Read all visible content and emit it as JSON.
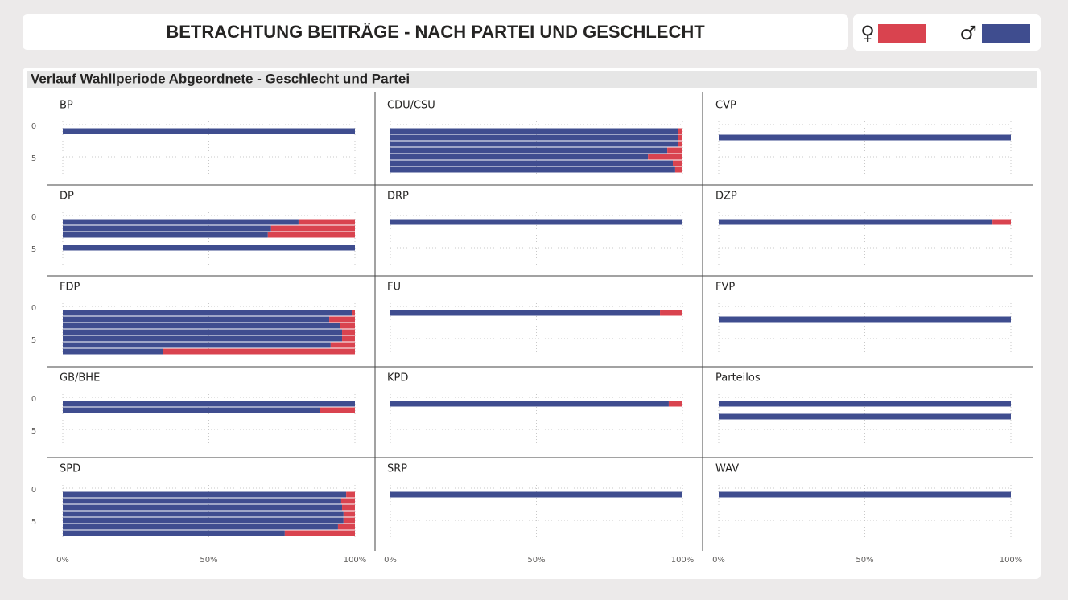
{
  "chart_data": {
    "type": "bar",
    "orientation": "horizontal",
    "stacked": true,
    "title": "BETRACHTUNG BEITRÄGE - NACH PARTEI UND GESCHLECHT",
    "subtitle": "Verlauf Wahllperiode Abgeordnete - Geschlecht und Partei",
    "series": [
      {
        "name": "♀",
        "color": "#d9434f"
      },
      {
        "name": "♂",
        "color": "#3f4d8f"
      }
    ],
    "y": [
      1,
      2,
      3,
      4,
      5,
      6,
      7
    ],
    "ylim": [
      -1,
      8
    ],
    "yticks": [
      0,
      5
    ],
    "xlim": [
      0,
      100
    ],
    "xticks": [
      {
        "value": 0,
        "label": "0%"
      },
      {
        "value": 50,
        "label": "50%"
      },
      {
        "value": 100,
        "label": "100%"
      }
    ],
    "grid": true,
    "panels": [
      {
        "title": "BP",
        "series": [
          {
            "values": [
              0,
              null,
              null,
              null,
              null,
              null,
              null
            ]
          },
          {
            "values": [
              100,
              null,
              null,
              null,
              null,
              null,
              null
            ]
          }
        ]
      },
      {
        "title": "CDU/CSU",
        "series": [
          {
            "values": [
              1.6,
              1.6,
              1.6,
              5.2,
              11.8,
              3.3,
              2.5
            ]
          },
          {
            "values": [
              98.4,
              98.4,
              98.4,
              94.8,
              88.2,
              96.7,
              97.5
            ]
          }
        ]
      },
      {
        "title": "CVP",
        "series": [
          {
            "values": [
              null,
              0,
              null,
              null,
              null,
              null,
              null
            ]
          },
          {
            "values": [
              null,
              100,
              null,
              null,
              null,
              null,
              null
            ]
          }
        ]
      },
      {
        "title": "DP",
        "series": [
          {
            "values": [
              19.3,
              28.7,
              29.8,
              null,
              0,
              null,
              null
            ]
          },
          {
            "values": [
              80.7,
              71.3,
              70.2,
              null,
              100,
              null,
              null
            ]
          }
        ]
      },
      {
        "title": "DRP",
        "series": [
          {
            "values": [
              0,
              null,
              null,
              null,
              null,
              null,
              null
            ]
          },
          {
            "values": [
              100,
              null,
              null,
              null,
              null,
              null,
              null
            ]
          }
        ]
      },
      {
        "title": "DZP",
        "series": [
          {
            "values": [
              6.3,
              null,
              null,
              null,
              null,
              null,
              null
            ]
          },
          {
            "values": [
              93.7,
              null,
              null,
              null,
              null,
              null,
              null
            ]
          }
        ]
      },
      {
        "title": "FDP",
        "series": [
          {
            "values": [
              1.1,
              8.8,
              5.0,
              4.4,
              4.4,
              8.3,
              65.8
            ]
          },
          {
            "values": [
              98.9,
              91.2,
              95.0,
              95.6,
              95.6,
              91.7,
              34.2
            ]
          }
        ]
      },
      {
        "title": "FU",
        "series": [
          {
            "values": [
              7.7,
              null,
              null,
              null,
              null,
              null,
              null
            ]
          },
          {
            "values": [
              92.3,
              null,
              null,
              null,
              null,
              null,
              null
            ]
          }
        ]
      },
      {
        "title": "FVP",
        "series": [
          {
            "values": [
              null,
              0,
              null,
              null,
              null,
              null,
              null
            ]
          },
          {
            "values": [
              null,
              100,
              null,
              null,
              null,
              null,
              null
            ]
          }
        ]
      },
      {
        "title": "GB/BHE",
        "series": [
          {
            "values": [
              0,
              12.1,
              null,
              null,
              null,
              null,
              null
            ]
          },
          {
            "values": [
              100,
              87.9,
              null,
              null,
              null,
              null,
              null
            ]
          }
        ]
      },
      {
        "title": "KPD",
        "series": [
          {
            "values": [
              4.7,
              null,
              null,
              null,
              null,
              null,
              null
            ]
          },
          {
            "values": [
              95.3,
              null,
              null,
              null,
              null,
              null,
              null
            ]
          }
        ]
      },
      {
        "title": "Parteilos",
        "series": [
          {
            "values": [
              0,
              null,
              0,
              null,
              null,
              null,
              null
            ]
          },
          {
            "values": [
              100,
              null,
              100,
              null,
              null,
              null,
              null
            ]
          }
        ]
      },
      {
        "title": "SPD",
        "series": [
          {
            "values": [
              3.0,
              4.7,
              4.4,
              3.9,
              3.9,
              5.8,
              24.0
            ]
          },
          {
            "values": [
              97.0,
              95.3,
              95.6,
              96.1,
              96.1,
              94.2,
              76.0
            ]
          }
        ]
      },
      {
        "title": "SRP",
        "series": [
          {
            "values": [
              0,
              null,
              null,
              null,
              null,
              null,
              null
            ]
          },
          {
            "values": [
              100,
              null,
              null,
              null,
              null,
              null,
              null
            ]
          }
        ]
      },
      {
        "title": "WAV",
        "series": [
          {
            "values": [
              0,
              null,
              null,
              null,
              null,
              null,
              null
            ]
          },
          {
            "values": [
              100,
              null,
              null,
              null,
              null,
              null,
              null
            ]
          }
        ]
      }
    ]
  }
}
